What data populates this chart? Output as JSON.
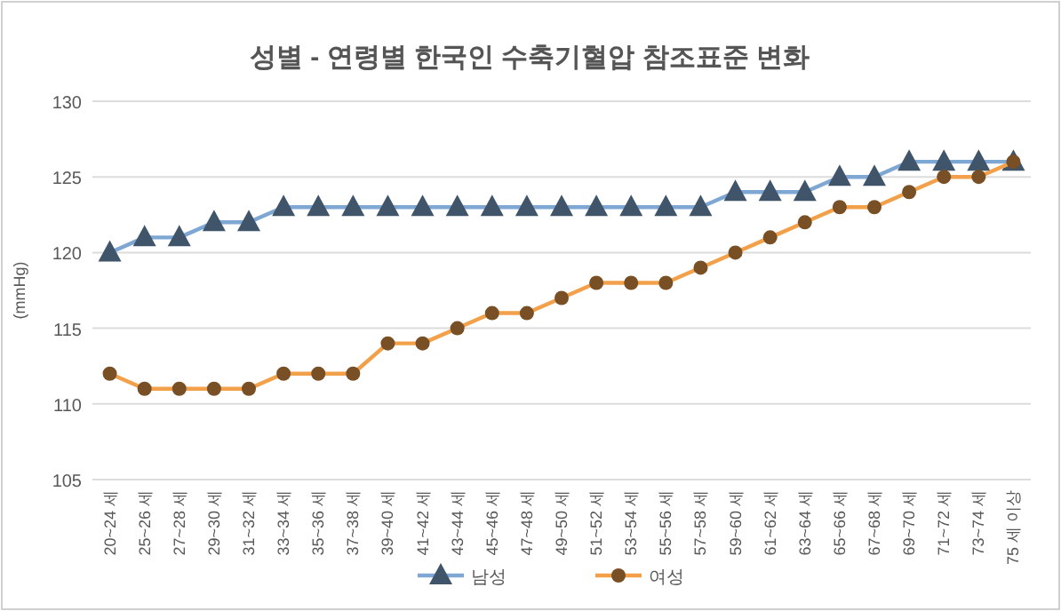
{
  "chart_data": {
    "type": "line",
    "title": "성별 - 연령별 한국인 수축기혈압 참조표준 변화",
    "ylabel": "(mmHg)",
    "categories": [
      "20~24 세",
      "25~26 세",
      "27~28 세",
      "29~30 세",
      "31~32 세",
      "33~34 세",
      "35~36 세",
      "37~38 세",
      "39~40 세",
      "41~42 세",
      "43~44 세",
      "45~46 세",
      "47~48 세",
      "49~50 세",
      "51~52 세",
      "53~54 세",
      "55~56 세",
      "57~58 세",
      "59~60 세",
      "61~62 세",
      "63~64 세",
      "65~66 세",
      "67~68 세",
      "69~70 세",
      "71~72 세",
      "73~74 세",
      "75 세 이상"
    ],
    "series": [
      {
        "name": "남성",
        "color": "#7fa7d3",
        "marker": "triangle",
        "values": [
          120,
          121,
          121,
          122,
          122,
          123,
          123,
          123,
          123,
          123,
          123,
          123,
          123,
          123,
          123,
          123,
          123,
          123,
          124,
          124,
          124,
          125,
          125,
          126,
          126,
          126,
          126
        ]
      },
      {
        "name": "여성",
        "color": "#f2a04a",
        "marker": "circle",
        "values": [
          112,
          111,
          111,
          111,
          111,
          112,
          112,
          112,
          114,
          114,
          115,
          116,
          116,
          117,
          118,
          118,
          118,
          119,
          120,
          121,
          122,
          123,
          123,
          124,
          125,
          125,
          126
        ]
      }
    ],
    "ylim": [
      105,
      130
    ],
    "yticks": [
      105,
      110,
      115,
      120,
      125,
      130
    ],
    "grid": "y",
    "legend": "bottom",
    "line_style": "solid"
  }
}
